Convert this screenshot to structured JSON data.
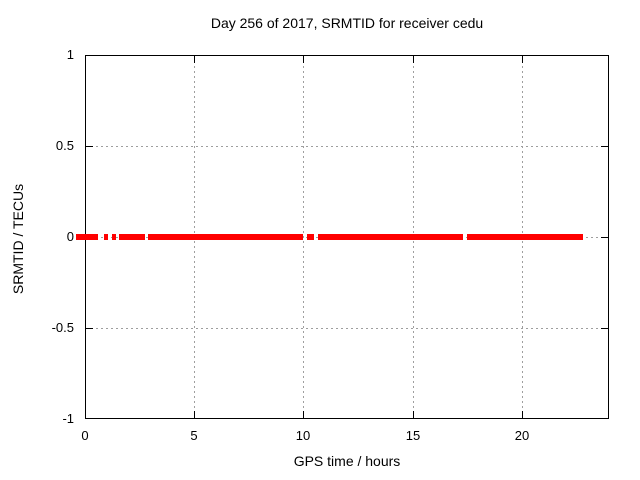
{
  "chart_data": {
    "type": "line",
    "title": "Day 256 of 2017, SRMTID for receiver cedu",
    "xlabel": "GPS time / hours",
    "ylabel": "SRMTID / TECUs",
    "xlim": [
      0,
      24
    ],
    "ylim": [
      -1,
      1
    ],
    "grid": true,
    "legend": "none",
    "xticks": [
      {
        "value": 0,
        "label": "0"
      },
      {
        "value": 5,
        "label": "5"
      },
      {
        "value": 10,
        "label": "10"
      },
      {
        "value": 15,
        "label": "15"
      },
      {
        "value": 20,
        "label": "20"
      }
    ],
    "yticks": [
      {
        "value": 1,
        "label": "1"
      },
      {
        "value": 0.5,
        "label": "0.5"
      },
      {
        "value": 0,
        "label": "0"
      },
      {
        "value": -0.5,
        "label": "-0.5"
      },
      {
        "value": -1,
        "label": "-1"
      }
    ],
    "series": [
      {
        "name": "SRMTID",
        "y_value": 0,
        "style": "thick horizontal line at y=0 with data gaps",
        "segments_hours": [
          [
            -0.41,
            0.6
          ],
          [
            0.87,
            1.05
          ],
          [
            1.24,
            1.42
          ],
          [
            1.56,
            2.75
          ],
          [
            2.89,
            9.98
          ],
          [
            10.17,
            10.49
          ],
          [
            10.67,
            17.31
          ],
          [
            17.5,
            22.81
          ]
        ]
      }
    ],
    "colors": {
      "series": "#ff0000",
      "grid": "#9e9e9e",
      "border": "#000000",
      "background": "#ffffff",
      "text": "#000000"
    }
  }
}
